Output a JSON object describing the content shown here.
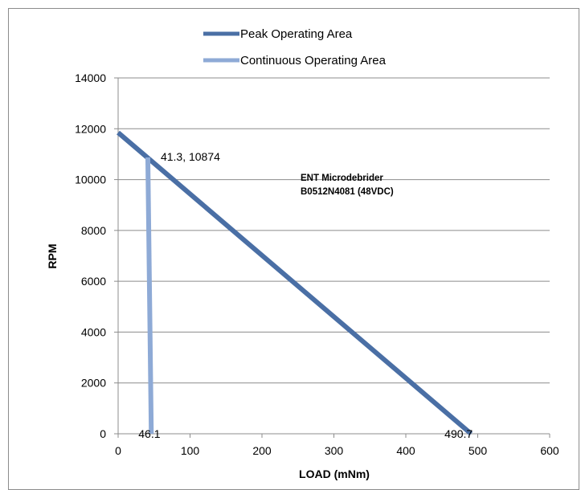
{
  "chart_data": {
    "type": "line",
    "xlabel": "LOAD (mNm)",
    "ylabel": "RPM",
    "xlim": [
      0,
      600
    ],
    "ylim": [
      0,
      14000
    ],
    "x_ticks": [
      0,
      100,
      200,
      300,
      400,
      500,
      600
    ],
    "y_ticks": [
      0,
      2000,
      4000,
      6000,
      8000,
      10000,
      12000,
      14000
    ],
    "grid": "horizontal",
    "legend_position": "top",
    "series": [
      {
        "name": "Peak Operating Area",
        "color": "#4a6fa5",
        "points": [
          [
            0,
            11850
          ],
          [
            490.7,
            0
          ]
        ]
      },
      {
        "name": "Continuous Operating Area",
        "color": "#8eaad6",
        "points": [
          [
            41.3,
            10874
          ],
          [
            46.1,
            0
          ]
        ]
      }
    ],
    "annotations": [
      {
        "text": "41.3, 10874",
        "x": 41.3,
        "y": 10874
      },
      {
        "text": "46.1",
        "x": 46.1,
        "y": 0
      },
      {
        "text": "490.7",
        "x": 490.7,
        "y": 0
      }
    ],
    "notes": [
      "ENT Microdebrider",
      "B0512N4081 (48VDC)"
    ]
  }
}
